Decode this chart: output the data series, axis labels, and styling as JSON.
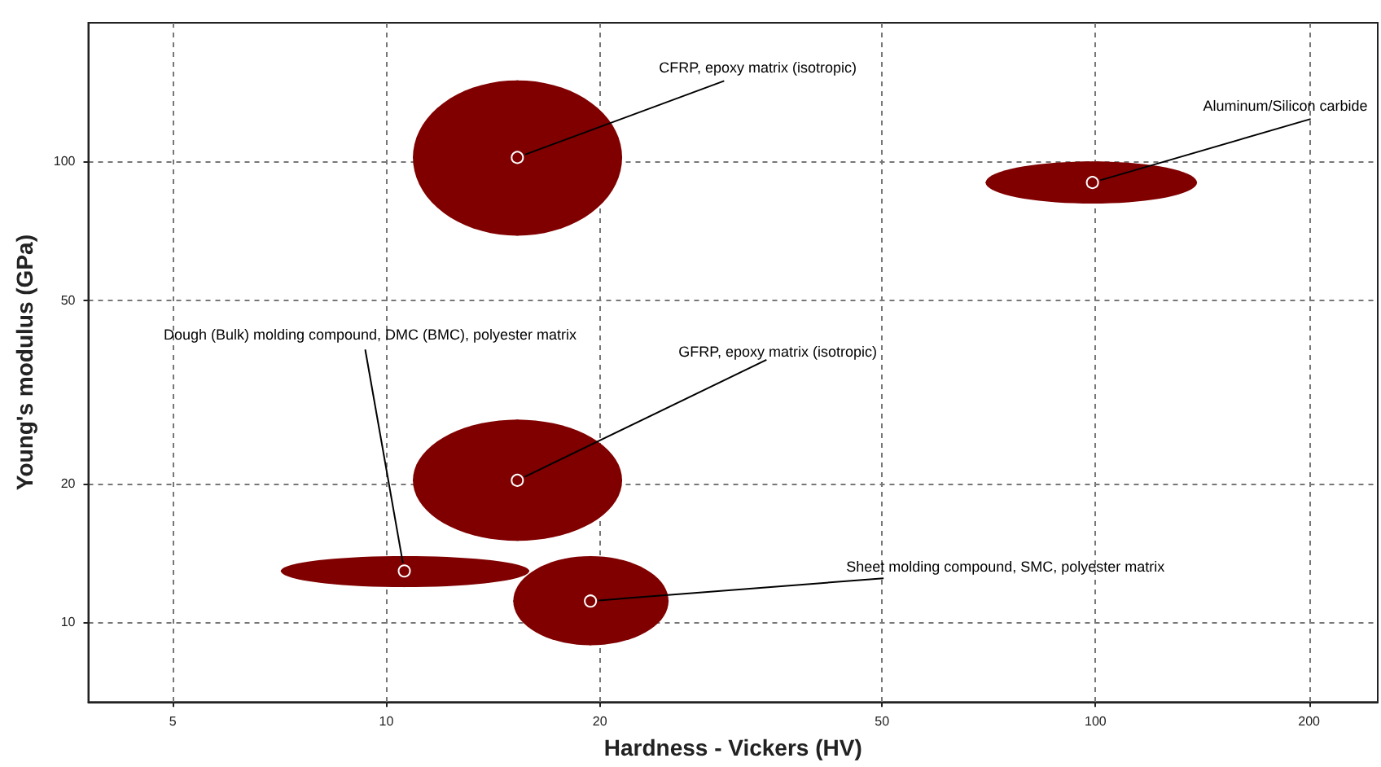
{
  "chart_data": {
    "type": "scatter",
    "xlabel": "Hardness - Vickers (HV)",
    "ylabel": "Young's modulus (GPa)",
    "log": "xy",
    "grid": true,
    "legend": false,
    "xlim": [
      3.8,
      250
    ],
    "ylim": [
      6.7,
      200
    ],
    "xticks": [
      5,
      10,
      20,
      50,
      100,
      200
    ],
    "yticks": [
      10,
      20,
      50,
      100
    ],
    "series": [
      {
        "name": "CFRP, epoxy matrix (isotropic)",
        "color": "#800000",
        "x": [
          15.3
        ],
        "values": [
          102
        ],
        "xerrors": [
          [
            10.9,
            21.5
          ]
        ],
        "errors": [
          [
            69,
            150
          ]
        ]
      },
      {
        "name": "Aluminum/Silicon carbide",
        "color": "#800000",
        "x": [
          99
        ],
        "values": [
          90
        ],
        "xerrors": [
          [
            70,
            139
          ]
        ],
        "errors": [
          [
            81,
            100
          ]
        ]
      },
      {
        "name": "Dough (Bulk) molding compound, DMC (BMC), polyester matrix",
        "color": "#800000",
        "x": [
          10.6
        ],
        "values": [
          12.9
        ],
        "xerrors": [
          [
            7.1,
            15.9
          ]
        ],
        "errors": [
          [
            11.9,
            13.9
          ]
        ]
      },
      {
        "name": "GFRP, epoxy matrix (isotropic)",
        "color": "#800000",
        "x": [
          15.3
        ],
        "values": [
          20.3
        ],
        "xerrors": [
          [
            10.9,
            21.5
          ]
        ],
        "errors": [
          [
            15,
            27.5
          ]
        ]
      },
      {
        "name": "Sheet molding compound, SMC, polyester matrix",
        "color": "#800000",
        "x": [
          19.4
        ],
        "values": [
          11.1
        ],
        "xerrors": [
          [
            15.1,
            25
          ]
        ],
        "errors": [
          [
            8.9,
            13.9
          ]
        ]
      }
    ]
  }
}
